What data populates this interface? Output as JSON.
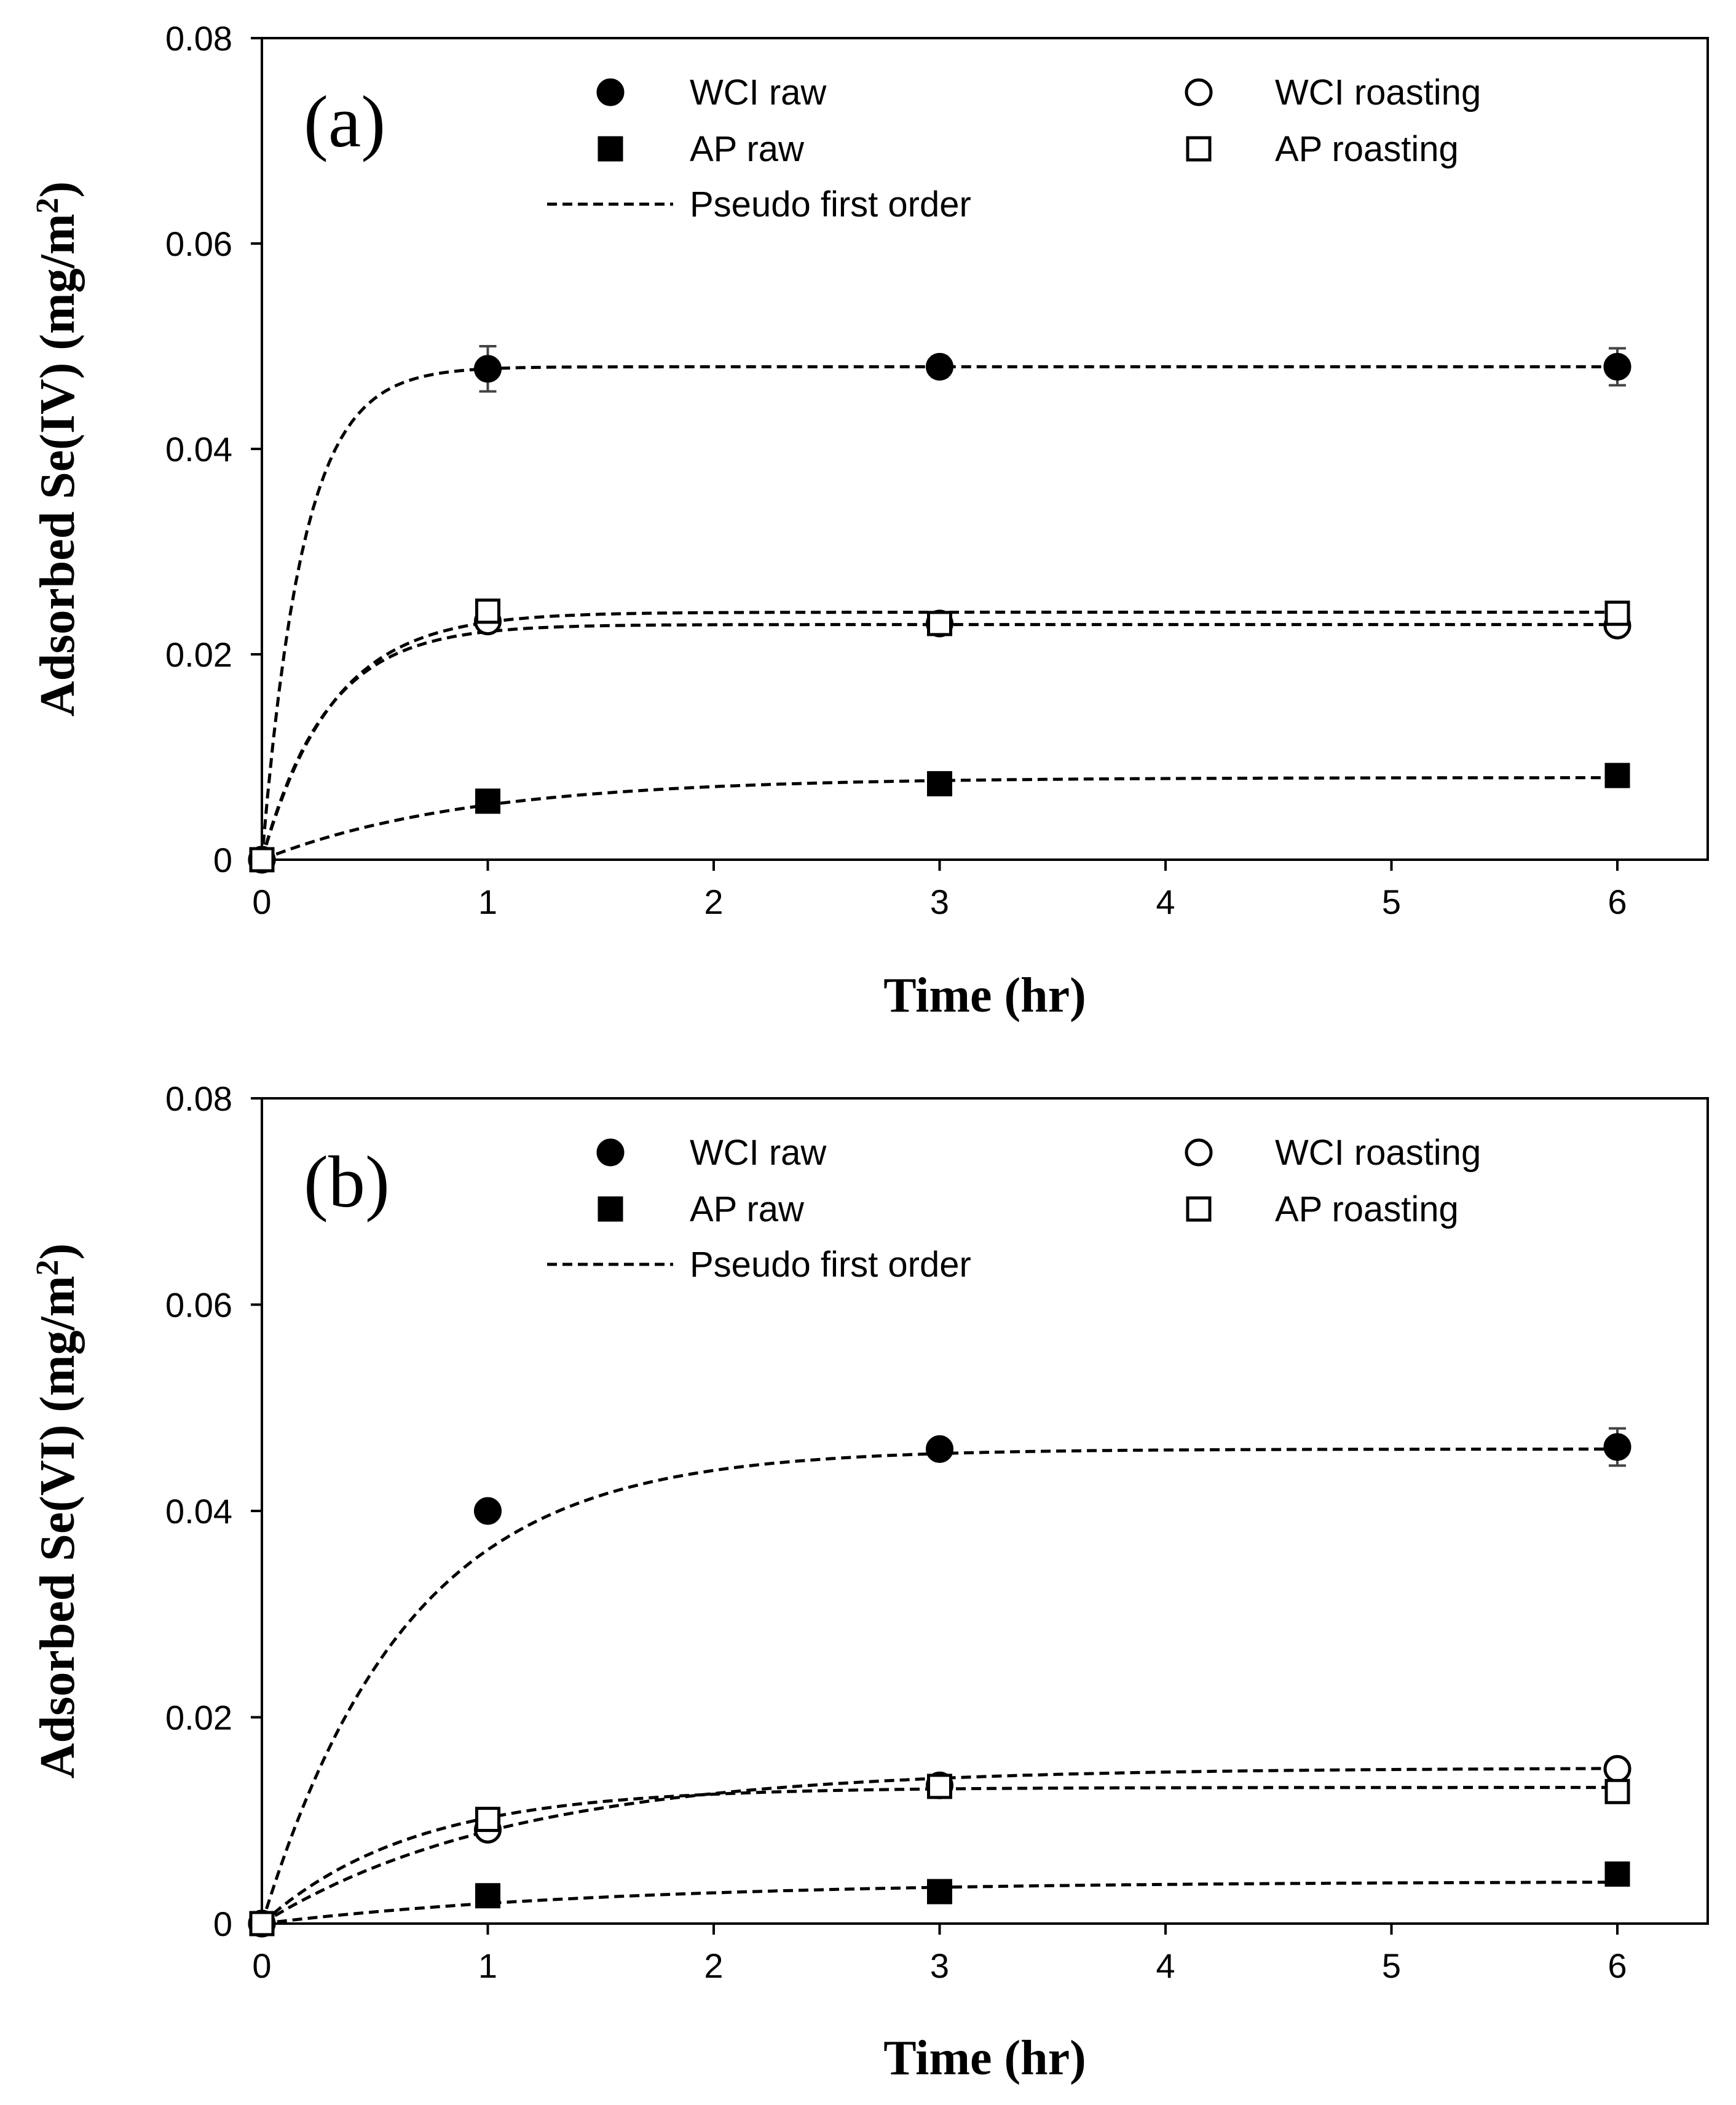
{
  "chart_data": [
    {
      "type": "scatter",
      "panel_label": "(a)",
      "xlabel": "Time (hr)",
      "ylabel": "Adsorbed Se(IV) (mg/m",
      "ylabel_sup": "2",
      "ylabel_close": ")",
      "xlim": [
        0,
        6.4
      ],
      "ylim": [
        0,
        0.08
      ],
      "xticks": [
        0,
        1,
        2,
        3,
        4,
        5,
        6
      ],
      "xtick_labels": [
        "0",
        "1",
        "2",
        "3",
        "4",
        "5",
        "6"
      ],
      "yticks": [
        0,
        0.02,
        0.04,
        0.06,
        0.08
      ],
      "ytick_labels": [
        "0",
        "0.02",
        "0.04",
        "0.06",
        "0.08"
      ],
      "grid": false,
      "legend_placement": "top",
      "fit_label": "Pseudo first order",
      "series": [
        {
          "name": "WCI raw",
          "marker": "circle",
          "filled": true,
          "x": [
            0,
            1,
            3,
            6
          ],
          "y": [
            0,
            0.0478,
            0.048,
            0.048
          ],
          "err": [
            0,
            0.0022,
            0.001,
            0.0018
          ],
          "fit": {
            "qe": 0.048,
            "k": 5.5
          }
        },
        {
          "name": "WCI roasting",
          "marker": "circle",
          "filled": false,
          "x": [
            0,
            1,
            3,
            6
          ],
          "y": [
            0,
            0.0232,
            0.023,
            0.0228
          ],
          "err": [
            0,
            0.0005,
            0,
            0
          ],
          "fit": {
            "qe": 0.0229,
            "k": 3.5
          }
        },
        {
          "name": "AP raw",
          "marker": "square",
          "filled": true,
          "x": [
            0,
            1,
            3,
            6
          ],
          "y": [
            0,
            0.0057,
            0.0074,
            0.0082
          ],
          "err": [
            0,
            0,
            0,
            0
          ],
          "fit": {
            "qe": 0.008,
            "k": 1.1
          }
        },
        {
          "name": "AP roasting",
          "marker": "square",
          "filled": false,
          "x": [
            0,
            1,
            3,
            6
          ],
          "y": [
            0,
            0.0242,
            0.023,
            0.024
          ],
          "err": [
            0,
            0,
            0,
            0
          ],
          "fit": {
            "qe": 0.0241,
            "k": 3.2
          }
        }
      ]
    },
    {
      "type": "scatter",
      "panel_label": "(b)",
      "xlabel": "Time (hr)",
      "ylabel": "Adsorbed Se(VI) (mg/m",
      "ylabel_sup": "2",
      "ylabel_close": ")",
      "xlim": [
        0,
        6.4
      ],
      "ylim": [
        0,
        0.08
      ],
      "xticks": [
        0,
        1,
        2,
        3,
        4,
        5,
        6
      ],
      "xtick_labels": [
        "0",
        "1",
        "2",
        "3",
        "4",
        "5",
        "6"
      ],
      "yticks": [
        0,
        0.02,
        0.04,
        0.06,
        0.08
      ],
      "ytick_labels": [
        "0",
        "0.02",
        "0.04",
        "0.06",
        "0.08"
      ],
      "grid": false,
      "legend_placement": "top",
      "fit_label": "Pseudo first order",
      "series": [
        {
          "name": "WCI raw",
          "marker": "circle",
          "filled": true,
          "x": [
            0,
            1,
            3,
            6
          ],
          "y": [
            0,
            0.04,
            0.046,
            0.0462
          ],
          "err": [
            0,
            0,
            0,
            0.0018
          ],
          "fit": {
            "qe": 0.046,
            "k": 1.55
          }
        },
        {
          "name": "WCI roasting",
          "marker": "circle",
          "filled": false,
          "x": [
            0,
            1,
            3,
            6
          ],
          "y": [
            0,
            0.0091,
            0.0134,
            0.015
          ],
          "err": [
            0,
            0,
            0,
            0
          ],
          "fit": {
            "qe": 0.0151,
            "k": 0.9
          }
        },
        {
          "name": "AP raw",
          "marker": "square",
          "filled": true,
          "x": [
            0,
            1,
            3,
            6
          ],
          "y": [
            0,
            0.0027,
            0.0031,
            0.0048
          ],
          "err": [
            0,
            0,
            0,
            0
          ],
          "fit": {
            "qe": 0.0041,
            "k": 0.65
          }
        },
        {
          "name": "AP roasting",
          "marker": "square",
          "filled": false,
          "x": [
            0,
            1,
            3,
            6
          ],
          "y": [
            0,
            0.0101,
            0.0133,
            0.0128
          ],
          "err": [
            0,
            0,
            0,
            0
          ],
          "fit": {
            "qe": 0.0132,
            "k": 1.5
          }
        }
      ]
    }
  ]
}
